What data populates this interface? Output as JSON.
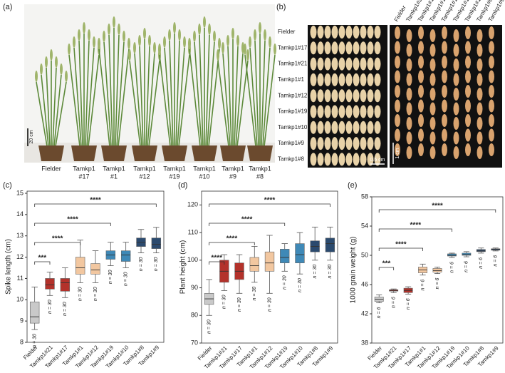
{
  "panel_a": {
    "label": "(a)",
    "scale": "20 cm",
    "plants": [
      [
        "Fielder"
      ],
      [
        "Tamkp1",
        "#17"
      ],
      [
        "Tamkp1",
        "#1"
      ],
      [
        "Tamkp1",
        "#12"
      ],
      [
        "Tamkp1",
        "#19"
      ],
      [
        "Tamkp1",
        "#10"
      ],
      [
        "Tamkp1",
        "#9"
      ],
      [
        "Tamkp1",
        "#8"
      ]
    ]
  },
  "panel_b": {
    "label": "(b)",
    "rows": [
      "Fielder",
      "Tamkp1#17",
      "Tamkp1#21",
      "Tamkp1#1",
      "Tamkp1#12",
      "Tamkp1#19",
      "Tamkp1#10",
      "Tamkp1#9",
      "Tamkp1#8"
    ],
    "columns": [
      "Fielder",
      "Tamkp1#21",
      "Tamkp1#17",
      "Tamkp1#1",
      "Tamkp1#12",
      "Tamkp1#19",
      "Tamkp1#10",
      "Tamkp1#8",
      "Tamkp1#9"
    ],
    "scale_left": "0.5 cm",
    "scale_right": "1 cm"
  },
  "chart_data": [
    {
      "type": "box",
      "panel": "(c)",
      "ylabel": "Spike length (cm)",
      "categories": [
        "Fielder",
        "Tamkp1#21",
        "Tamkp1#17",
        "Tamkp1#1",
        "Tamkp1#12",
        "Tamkp1#19",
        "Tamkp1#10",
        "Tamkp1#8",
        "Tamkp1#9"
      ],
      "colors": [
        "#c9c9c9",
        "#b3322b",
        "#b3322b",
        "#f2c7a0",
        "#f2c7a0",
        "#3f89b7",
        "#3f89b7",
        "#2b4a6e",
        "#2b4a6e"
      ],
      "boxes": [
        {
          "min": 8.6,
          "q1": 8.9,
          "median": 9.2,
          "q3": 9.9,
          "max": 10.6
        },
        {
          "min": 10.2,
          "q1": 10.5,
          "median": 10.7,
          "q3": 11.0,
          "max": 11.3
        },
        {
          "min": 10.1,
          "q1": 10.4,
          "median": 10.8,
          "q3": 11.0,
          "max": 11.5
        },
        {
          "min": 10.8,
          "q1": 11.2,
          "median": 11.5,
          "q3": 12.0,
          "max": 12.8
        },
        {
          "min": 10.8,
          "q1": 11.2,
          "median": 11.4,
          "q3": 11.7,
          "max": 12.3
        },
        {
          "min": 11.6,
          "q1": 11.9,
          "median": 12.1,
          "q3": 12.3,
          "max": 12.7
        },
        {
          "min": 11.5,
          "q1": 11.8,
          "median": 12.1,
          "q3": 12.3,
          "max": 12.7
        },
        {
          "min": 12.2,
          "q1": 12.5,
          "median": 12.7,
          "q3": 12.9,
          "max": 13.3
        },
        {
          "min": 12.2,
          "q1": 12.4,
          "median": 12.6,
          "q3": 12.9,
          "max": 13.4
        }
      ],
      "n_labels": [
        "n = 30",
        "n = 30",
        "n = 30",
        "n = 30",
        "n = 30",
        "n = 30",
        "n = 30",
        "n = 30",
        "n = 30"
      ],
      "ylim": [
        8,
        15.1
      ],
      "yticks": [
        8,
        9,
        10,
        11,
        12,
        13,
        14,
        15
      ],
      "brackets": [
        {
          "label": "***",
          "from": "Fielder",
          "to": "Tamkp1#21"
        },
        {
          "label": "****",
          "from": "Fielder",
          "to": "Tamkp1#1"
        },
        {
          "label": "****",
          "from": "Fielder",
          "to": "Tamkp1#19"
        },
        {
          "label": "****",
          "from": "Fielder",
          "to": "Tamkp1#9"
        }
      ]
    },
    {
      "type": "box",
      "panel": "(d)",
      "ylabel": "Plant height (cm)",
      "categories": [
        "Fielder",
        "Tamkp1#21",
        "Tamkp1#17",
        "Tamkp1#1",
        "Tamkp1#12",
        "Tamkp1#19",
        "Tamkp1#10",
        "Tamkp1#8",
        "Tamkp1#9"
      ],
      "colors": [
        "#c9c9c9",
        "#b3322b",
        "#b3322b",
        "#f2c7a0",
        "#f2c7a0",
        "#3f89b7",
        "#3f89b7",
        "#2b4a6e",
        "#2b4a6e"
      ],
      "boxes": [
        {
          "min": 80,
          "q1": 84,
          "median": 86,
          "q3": 88,
          "max": 93
        },
        {
          "min": 89,
          "q1": 92,
          "median": 96,
          "q3": 100,
          "max": 102
        },
        {
          "min": 88,
          "q1": 93,
          "median": 96,
          "q3": 99,
          "max": 102
        },
        {
          "min": 92,
          "q1": 96,
          "median": 98,
          "q3": 101,
          "max": 105
        },
        {
          "min": 88,
          "q1": 96,
          "median": 99,
          "q3": 103,
          "max": 109
        },
        {
          "min": 96,
          "q1": 99,
          "median": 101,
          "q3": 104,
          "max": 106
        },
        {
          "min": 95,
          "q1": 99,
          "median": 102,
          "q3": 106,
          "max": 110
        },
        {
          "min": 100,
          "q1": 103,
          "median": 105,
          "q3": 107,
          "max": 112
        },
        {
          "min": 100,
          "q1": 103,
          "median": 106,
          "q3": 108,
          "max": 112
        }
      ],
      "n_labels": [
        "n = 30",
        "n = 30",
        "n = 30",
        "n = 30",
        "n = 30",
        "n = 30",
        "n = 30",
        "n = 30",
        "n = 30"
      ],
      "ylim": [
        70,
        125
      ],
      "yticks": [
        70,
        80,
        90,
        100,
        110,
        120
      ],
      "brackets": [
        {
          "label": "****",
          "from": "Fielder",
          "to": "Tamkp1#21"
        },
        {
          "label": "****",
          "from": "Fielder",
          "to": "Tamkp1#1"
        },
        {
          "label": "****",
          "from": "Fielder",
          "to": "Tamkp1#19"
        },
        {
          "label": "****",
          "from": "Fielder",
          "to": "Tamkp1#9"
        }
      ]
    },
    {
      "type": "box",
      "panel": "(e)",
      "ylabel": "1000 grain weight (g)",
      "categories": [
        "Fielder",
        "Tamkp1#21",
        "Tamkp1#17",
        "Tamkp1#1",
        "Tamkp1#12",
        "Tamkp1#19",
        "Tamkp1#10",
        "Tamkp1#8",
        "Tamkp1#9"
      ],
      "colors": [
        "#c9c9c9",
        "#b3322b",
        "#b3322b",
        "#f2c7a0",
        "#f2c7a0",
        "#3f89b7",
        "#3f89b7",
        "#2b4a6e",
        "#2b4a6e"
      ],
      "boxes": [
        {
          "min": 43.5,
          "q1": 43.7,
          "median": 44.0,
          "q3": 44.3,
          "max": 44.6
        },
        {
          "min": 44.9,
          "q1": 45.1,
          "median": 45.2,
          "q3": 45.3,
          "max": 45.4
        },
        {
          "min": 44.7,
          "q1": 44.9,
          "median": 45.2,
          "q3": 45.5,
          "max": 45.7
        },
        {
          "min": 47.3,
          "q1": 47.6,
          "median": 48.0,
          "q3": 48.4,
          "max": 48.8
        },
        {
          "min": 47.5,
          "q1": 47.7,
          "median": 47.9,
          "q3": 48.2,
          "max": 48.4
        },
        {
          "min": 49.7,
          "q1": 49.9,
          "median": 50.0,
          "q3": 50.2,
          "max": 50.3
        },
        {
          "min": 49.8,
          "q1": 50.0,
          "median": 50.1,
          "q3": 50.3,
          "max": 50.5
        },
        {
          "min": 50.3,
          "q1": 50.5,
          "median": 50.6,
          "q3": 50.8,
          "max": 51.0
        },
        {
          "min": 50.6,
          "q1": 50.7,
          "median": 50.8,
          "q3": 50.9,
          "max": 51.0
        }
      ],
      "n_labels": [
        "n = 6",
        "n = 6",
        "n = 6",
        "n = 6",
        "n = 6",
        "n = 6",
        "n = 6",
        "n = 6",
        "n = 6"
      ],
      "ylim": [
        38,
        58
      ],
      "yticks": [
        38,
        42,
        46,
        50,
        54,
        58
      ],
      "brackets": [
        {
          "label": "***",
          "from": "Fielder",
          "to": "Tamkp1#21"
        },
        {
          "label": "****",
          "from": "Fielder",
          "to": "Tamkp1#1"
        },
        {
          "label": "****",
          "from": "Fielder",
          "to": "Tamkp1#19"
        },
        {
          "label": "****",
          "from": "Fielder",
          "to": "Tamkp1#9"
        }
      ]
    }
  ]
}
